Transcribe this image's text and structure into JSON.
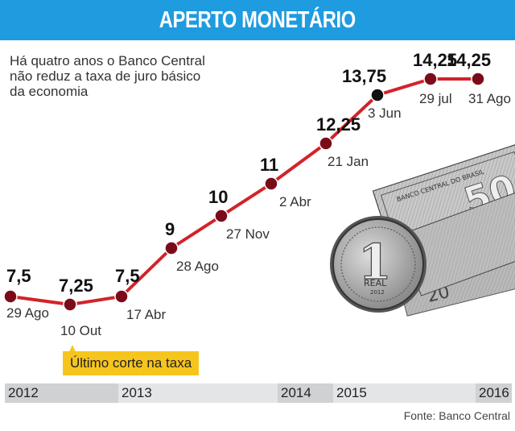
{
  "title": "APERTO MONETÁRIO",
  "subtitle": "Há quatro anos o Banco Central\nnão reduz a taxa de juro básico\nda economia",
  "callout": "Último corte na taxa",
  "source": "Fonte: Banco Central",
  "colors": {
    "header": "#1f9be0",
    "line": "#d2232a",
    "marker": "#7a0c1a",
    "current_marker": "#111111",
    "callout": "#f6c51d"
  },
  "timeline": [
    {
      "label": "2012",
      "shade": "dark"
    },
    {
      "label": "2013",
      "shade": "light"
    },
    {
      "label": "2014",
      "shade": "dark"
    },
    {
      "label": "2015",
      "shade": "light"
    },
    {
      "label": "2016",
      "shade": "dark"
    }
  ],
  "illustration": {
    "icon": "banknotes-and-real-coin",
    "coin_text": [
      "REAL",
      "2012"
    ],
    "note_value": "50",
    "note_text": "BANCO CENTRAL DO BRASIL"
  },
  "chart_data": {
    "type": "line",
    "categories": [
      "29 Ago",
      "10 Out",
      "17 Abr",
      "28 Ago",
      "27 Nov",
      "2 Abr",
      "21 Jan",
      "3 Jun",
      "29 jul",
      "31 Ago"
    ],
    "values": [
      7.5,
      7.25,
      7.5,
      9,
      10,
      11,
      12.25,
      13.75,
      14.25,
      14.25
    ],
    "value_labels": [
      "7,5",
      "7,25",
      "7,5",
      "9",
      "10",
      "11",
      "12,25",
      "13,75",
      "14,25",
      "14,25"
    ],
    "highlight_index": 7,
    "ylim": [
      7.25,
      14.25
    ],
    "grid": false,
    "legend": "none"
  }
}
